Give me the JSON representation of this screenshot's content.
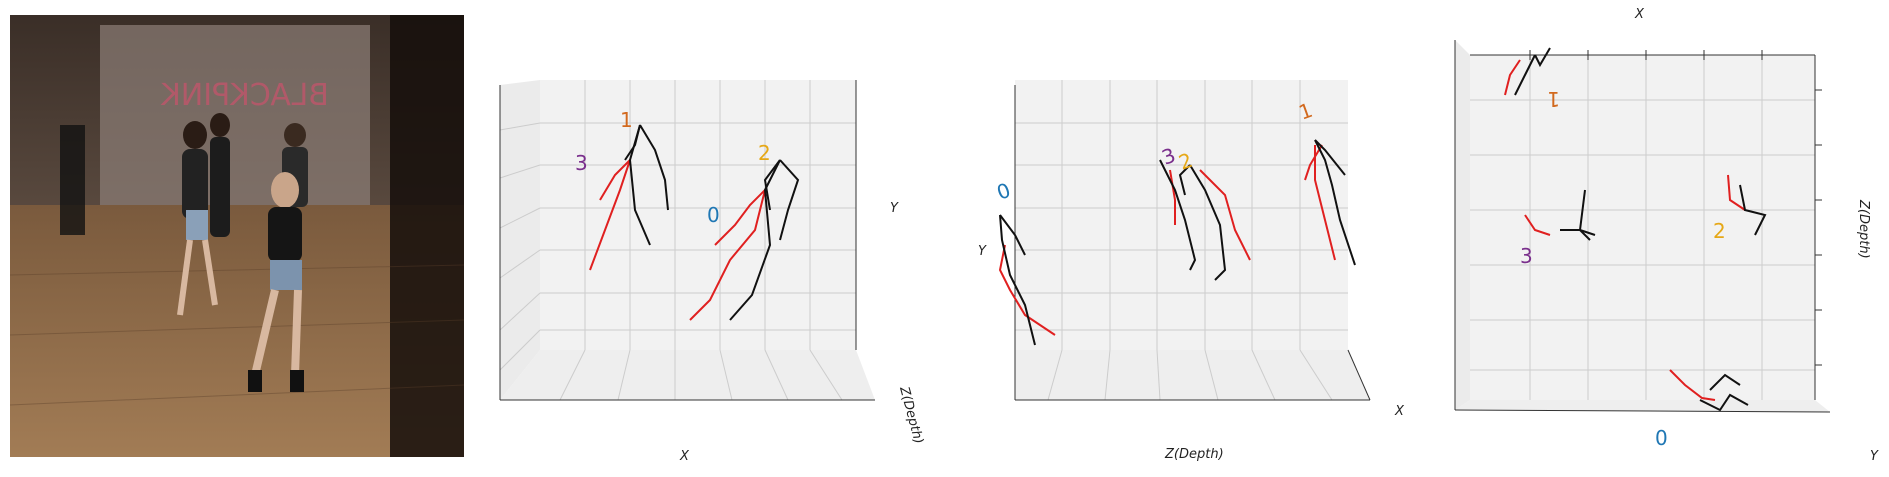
{
  "photo": {
    "description_icon": "dance-video-frame",
    "backdrop_text": "BLACKPINK"
  },
  "panels": [
    {
      "name": "front-view",
      "axis_labels": {
        "x": "X",
        "y": "Y",
        "z": "Z(Depth)"
      },
      "ids": [
        {
          "text": "0",
          "color": "#1f77b4"
        },
        {
          "text": "1",
          "color": "#d2691e"
        },
        {
          "text": "2",
          "color": "#e6a817"
        },
        {
          "text": "3",
          "color": "#7a2f8c"
        }
      ]
    },
    {
      "name": "side-view",
      "axis_labels": {
        "x": "X",
        "y": "Y",
        "z": "Z(Depth)"
      },
      "ids": [
        {
          "text": "0",
          "color": "#1f77b4"
        },
        {
          "text": "1",
          "color": "#d2691e"
        },
        {
          "text": "2",
          "color": "#e6a817"
        },
        {
          "text": "3",
          "color": "#7a2f8c"
        }
      ]
    },
    {
      "name": "top-view",
      "axis_labels": {
        "x": "X",
        "y": "Y",
        "z": "Z(Depth)"
      },
      "ids": [
        {
          "text": "0",
          "color": "#1f77b4"
        },
        {
          "text": "1",
          "color": "#d2691e"
        },
        {
          "text": "2",
          "color": "#e6a817"
        },
        {
          "text": "3",
          "color": "#7a2f8c"
        }
      ]
    }
  ],
  "colors": {
    "limb_left": "#e02020",
    "limb_right": "#111111",
    "grid": "#cccccc",
    "pane": "#f2f2f2"
  }
}
